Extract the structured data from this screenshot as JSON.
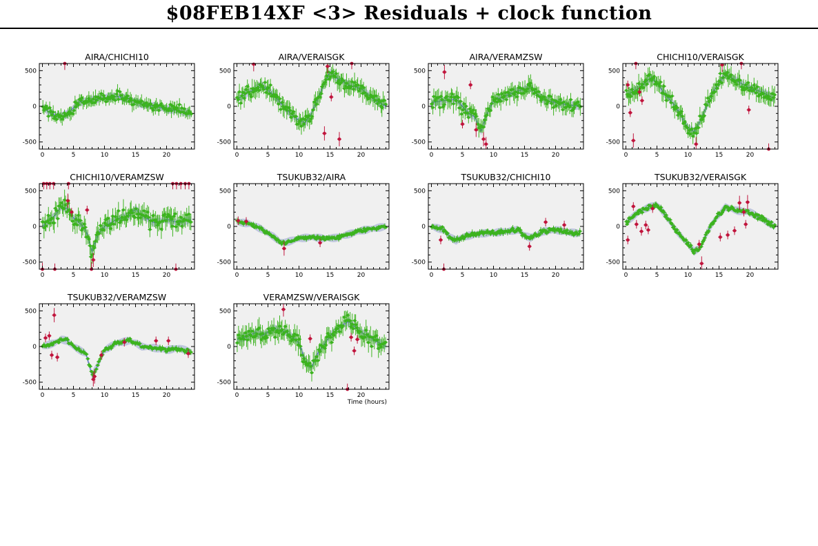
{
  "title": "$08FEB14XF <3> Residuals + clock function",
  "colors": {
    "good_points": "#3cb31f",
    "flagged_points": "#c0143c",
    "clock_band": "#b7bfdc",
    "clock_line": "#4a5fc8",
    "plot_bg": "#f0f0f0"
  },
  "chart_data": [
    {
      "type": "scatter",
      "title": "AIRA/CHICHI10",
      "xlim": [
        -0.5,
        24.5
      ],
      "ylim": [
        -600,
        600
      ],
      "xticks": [
        0,
        5,
        10,
        15,
        20
      ],
      "yticks": [
        -500,
        0,
        500
      ],
      "xlabel": "",
      "trend": [
        [
          0,
          0
        ],
        [
          1,
          -80
        ],
        [
          2,
          -120
        ],
        [
          3,
          -140
        ],
        [
          4,
          -110
        ],
        [
          5,
          -20
        ],
        [
          6,
          60
        ],
        [
          8,
          90
        ],
        [
          10,
          120
        ],
        [
          12,
          140
        ],
        [
          14,
          100
        ],
        [
          16,
          30
        ],
        [
          18,
          0
        ],
        [
          20,
          -40
        ],
        [
          22,
          -60
        ],
        [
          24,
          -100
        ]
      ],
      "noise": 60,
      "err": 75,
      "n": 130,
      "outliers": [
        [
          3.6,
          610
        ]
      ]
    },
    {
      "type": "scatter",
      "title": "AIRA/VERAISGK",
      "xlim": [
        -0.5,
        24.5
      ],
      "ylim": [
        -600,
        600
      ],
      "xticks": [
        0,
        5,
        10,
        15,
        20
      ],
      "yticks": [
        -500,
        0,
        500
      ],
      "xlabel": "",
      "trend": [
        [
          0,
          100
        ],
        [
          2,
          200
        ],
        [
          4,
          300
        ],
        [
          6,
          150
        ],
        [
          8,
          -50
        ],
        [
          10,
          -200
        ],
        [
          11,
          -230
        ],
        [
          12,
          -100
        ],
        [
          14,
          300
        ],
        [
          15,
          480
        ],
        [
          16,
          400
        ],
        [
          18,
          300
        ],
        [
          20,
          250
        ],
        [
          22,
          100
        ],
        [
          24,
          0
        ]
      ],
      "noise": 70,
      "err": 100,
      "n": 130,
      "outliers": [
        [
          2.7,
          590
        ],
        [
          14.1,
          -380
        ],
        [
          14.6,
          560
        ],
        [
          15.2,
          130
        ],
        [
          16.5,
          -460
        ],
        [
          18.5,
          620
        ]
      ]
    },
    {
      "type": "scatter",
      "title": "AIRA/VERAMZSW",
      "xlim": [
        -0.5,
        24.5
      ],
      "ylim": [
        -600,
        600
      ],
      "xticks": [
        0,
        5,
        10,
        15,
        20
      ],
      "yticks": [
        -500,
        0,
        500
      ],
      "xlabel": "",
      "trend": [
        [
          0,
          50
        ],
        [
          2,
          80
        ],
        [
          4,
          100
        ],
        [
          6,
          -100
        ],
        [
          7,
          -150
        ],
        [
          8,
          -350
        ],
        [
          9,
          -100
        ],
        [
          10,
          80
        ],
        [
          12,
          150
        ],
        [
          14,
          220
        ],
        [
          16,
          260
        ],
        [
          18,
          100
        ],
        [
          20,
          50
        ],
        [
          22,
          20
        ],
        [
          24,
          0
        ]
      ],
      "noise": 80,
      "err": 100,
      "n": 130,
      "outliers": [
        [
          2.1,
          480
        ],
        [
          5.0,
          -250
        ],
        [
          6.3,
          300
        ],
        [
          7.2,
          -330
        ],
        [
          8.4,
          -460
        ],
        [
          8.8,
          -530
        ]
      ]
    },
    {
      "type": "scatter",
      "title": "CHICHI10/VERAISGK",
      "xlim": [
        -0.5,
        24.5
      ],
      "ylim": [
        -600,
        600
      ],
      "xticks": [
        0,
        5,
        10,
        15,
        20
      ],
      "yticks": [
        -500,
        0,
        500
      ],
      "xlabel": "",
      "trend": [
        [
          0,
          150
        ],
        [
          2,
          250
        ],
        [
          4,
          400
        ],
        [
          5,
          330
        ],
        [
          6,
          200
        ],
        [
          8,
          0
        ],
        [
          10,
          -300
        ],
        [
          11,
          -360
        ],
        [
          12,
          -200
        ],
        [
          14,
          200
        ],
        [
          16,
          450
        ],
        [
          18,
          350
        ],
        [
          20,
          250
        ],
        [
          22,
          200
        ],
        [
          24,
          100
        ]
      ],
      "noise": 70,
      "err": 100,
      "n": 130,
      "outliers": [
        [
          0.3,
          300
        ],
        [
          0.7,
          -90
        ],
        [
          1.2,
          -480
        ],
        [
          1.6,
          620
        ],
        [
          2.2,
          200
        ],
        [
          2.6,
          80
        ],
        [
          11.3,
          -530
        ],
        [
          15.5,
          580
        ],
        [
          18.6,
          620
        ],
        [
          19.8,
          -50
        ],
        [
          23.0,
          -620
        ]
      ]
    },
    {
      "type": "scatter",
      "title": "CHICHI10/VERAMZSW",
      "xlim": [
        -0.5,
        24.5
      ],
      "ylim": [
        -600,
        600
      ],
      "xticks": [
        0,
        5,
        10,
        15,
        20
      ],
      "yticks": [
        -500,
        0,
        500
      ],
      "xlabel": "",
      "trend": [
        [
          0,
          0
        ],
        [
          2,
          150
        ],
        [
          3,
          280
        ],
        [
          4,
          250
        ],
        [
          5,
          120
        ],
        [
          6,
          50
        ],
        [
          7,
          -50
        ],
        [
          8,
          -350
        ],
        [
          9,
          -100
        ],
        [
          10,
          0
        ],
        [
          12,
          100
        ],
        [
          14,
          150
        ],
        [
          15,
          250
        ],
        [
          16,
          150
        ],
        [
          18,
          50
        ],
        [
          20,
          100
        ],
        [
          22,
          50
        ],
        [
          24,
          100
        ]
      ],
      "noise": 90,
      "err": 110,
      "n": 130,
      "outliers": [
        [
          0.2,
          620
        ],
        [
          0.7,
          620
        ],
        [
          1.2,
          620
        ],
        [
          1.8,
          620
        ],
        [
          4.2,
          620
        ],
        [
          0.0,
          -610
        ],
        [
          2.0,
          -620
        ],
        [
          4.1,
          360
        ],
        [
          4.7,
          200
        ],
        [
          7.2,
          230
        ],
        [
          7.9,
          -600
        ],
        [
          8.2,
          -470
        ],
        [
          21.0,
          620
        ],
        [
          21.6,
          620
        ],
        [
          22.3,
          620
        ],
        [
          23.0,
          620
        ],
        [
          23.6,
          620
        ],
        [
          21.5,
          -620
        ]
      ]
    },
    {
      "type": "scatter",
      "title": "TSUKUB32/AIRA",
      "xlim": [
        -0.5,
        24.5
      ],
      "ylim": [
        -600,
        600
      ],
      "xticks": [
        0,
        5,
        10,
        15,
        20
      ],
      "yticks": [
        -500,
        0,
        500
      ],
      "xlabel": "",
      "trend": [
        [
          0,
          60
        ],
        [
          2,
          40
        ],
        [
          4,
          -40
        ],
        [
          6,
          -150
        ],
        [
          7,
          -220
        ],
        [
          8,
          -220
        ],
        [
          10,
          -170
        ],
        [
          12,
          -150
        ],
        [
          14,
          -170
        ],
        [
          16,
          -160
        ],
        [
          18,
          -110
        ],
        [
          20,
          -60
        ],
        [
          22,
          -30
        ],
        [
          24,
          0
        ]
      ],
      "noise": 20,
      "err": 30,
      "n": 140,
      "outliers": [
        [
          0.2,
          80
        ],
        [
          1.5,
          70
        ],
        [
          7.6,
          -310
        ],
        [
          13.4,
          -230
        ]
      ]
    },
    {
      "type": "scatter",
      "title": "TSUKUB32/CHICHI10",
      "xlim": [
        -0.5,
        24.5
      ],
      "ylim": [
        -600,
        600
      ],
      "xticks": [
        0,
        5,
        10,
        15,
        20
      ],
      "yticks": [
        -500,
        0,
        500
      ],
      "xlabel": "",
      "trend": [
        [
          0,
          0
        ],
        [
          2,
          -50
        ],
        [
          3,
          -150
        ],
        [
          4,
          -200
        ],
        [
          5,
          -150
        ],
        [
          6,
          -130
        ],
        [
          8,
          -100
        ],
        [
          10,
          -90
        ],
        [
          12,
          -70
        ],
        [
          14,
          -50
        ],
        [
          15,
          -130
        ],
        [
          16,
          -160
        ],
        [
          18,
          -70
        ],
        [
          20,
          -50
        ],
        [
          22,
          -80
        ],
        [
          24,
          -100
        ]
      ],
      "noise": 25,
      "err": 35,
      "n": 140,
      "outliers": [
        [
          1.5,
          -190
        ],
        [
          2.0,
          -620
        ],
        [
          18.4,
          60
        ],
        [
          15.8,
          -280
        ],
        [
          21.4,
          20
        ]
      ]
    },
    {
      "type": "scatter",
      "title": "TSUKUB32/VERAISGK",
      "xlim": [
        -0.5,
        24.5
      ],
      "ylim": [
        -600,
        600
      ],
      "xticks": [
        0,
        5,
        10,
        15,
        20
      ],
      "yticks": [
        -500,
        0,
        500
      ],
      "xlabel": "",
      "trend": [
        [
          0,
          50
        ],
        [
          2,
          200
        ],
        [
          4,
          280
        ],
        [
          5,
          300
        ],
        [
          6,
          200
        ],
        [
          8,
          -50
        ],
        [
          10,
          -250
        ],
        [
          11,
          -350
        ],
        [
          12,
          -300
        ],
        [
          13,
          -100
        ],
        [
          14,
          50
        ],
        [
          16,
          270
        ],
        [
          18,
          220
        ],
        [
          20,
          200
        ],
        [
          22,
          100
        ],
        [
          24,
          0
        ]
      ],
      "noise": 25,
      "err": 30,
      "n": 150,
      "outliers": [
        [
          0.3,
          -190
        ],
        [
          1.2,
          280
        ],
        [
          1.7,
          30
        ],
        [
          2.5,
          -70
        ],
        [
          3.2,
          20
        ],
        [
          3.6,
          -50
        ],
        [
          4.3,
          250
        ],
        [
          11.8,
          -250
        ],
        [
          12.2,
          -520
        ],
        [
          15.2,
          -150
        ],
        [
          16.4,
          -120
        ],
        [
          17.5,
          -60
        ],
        [
          18.3,
          330
        ],
        [
          19.0,
          200
        ],
        [
          19.6,
          340
        ],
        [
          19.3,
          30
        ]
      ]
    },
    {
      "type": "scatter",
      "title": "TSUKUB32/VERAMZSW",
      "xlim": [
        -0.5,
        24.5
      ],
      "ylim": [
        -600,
        600
      ],
      "xticks": [
        0,
        5,
        10,
        15,
        20
      ],
      "yticks": [
        -500,
        0,
        500
      ],
      "xlabel": "",
      "trend": [
        [
          0,
          0
        ],
        [
          2,
          50
        ],
        [
          3,
          100
        ],
        [
          4,
          80
        ],
        [
          5,
          0
        ],
        [
          7,
          -100
        ],
        [
          8,
          -400
        ],
        [
          9,
          -250
        ],
        [
          10,
          -50
        ],
        [
          12,
          50
        ],
        [
          14,
          80
        ],
        [
          15,
          50
        ],
        [
          16,
          0
        ],
        [
          18,
          -20
        ],
        [
          20,
          -50
        ],
        [
          22,
          -20
        ],
        [
          24,
          -80
        ]
      ],
      "noise": 25,
      "err": 30,
      "n": 120,
      "outliers": [
        [
          0.5,
          120
        ],
        [
          1.1,
          150
        ],
        [
          1.5,
          -120
        ],
        [
          1.9,
          440
        ],
        [
          2.4,
          -150
        ],
        [
          8.2,
          -460
        ],
        [
          8.4,
          -420
        ],
        [
          9.5,
          -120
        ],
        [
          13.2,
          60
        ],
        [
          18.3,
          80
        ],
        [
          20.3,
          80
        ],
        [
          23.5,
          -100
        ]
      ]
    },
    {
      "type": "scatter",
      "title": "VERAMZSW/VERAISGK",
      "xlim": [
        -0.5,
        24.5
      ],
      "ylim": [
        -600,
        600
      ],
      "xticks": [
        0,
        5,
        10,
        15,
        20
      ],
      "yticks": [
        -500,
        0,
        500
      ],
      "xlabel": "Time (hours)",
      "trend": [
        [
          0,
          100
        ],
        [
          2,
          150
        ],
        [
          3,
          200
        ],
        [
          4,
          150
        ],
        [
          6,
          250
        ],
        [
          8,
          200
        ],
        [
          10,
          50
        ],
        [
          11,
          -200
        ],
        [
          12,
          -300
        ],
        [
          13,
          -100
        ],
        [
          15,
          150
        ],
        [
          17,
          300
        ],
        [
          18,
          350
        ],
        [
          20,
          200
        ],
        [
          22,
          100
        ],
        [
          24,
          0
        ]
      ],
      "noise": 80,
      "err": 110,
      "n": 130,
      "outliers": [
        [
          7.5,
          520
        ],
        [
          11.8,
          110
        ],
        [
          17.8,
          -620
        ],
        [
          18.4,
          130
        ],
        [
          18.9,
          -60
        ],
        [
          19.4,
          100
        ]
      ]
    }
  ]
}
